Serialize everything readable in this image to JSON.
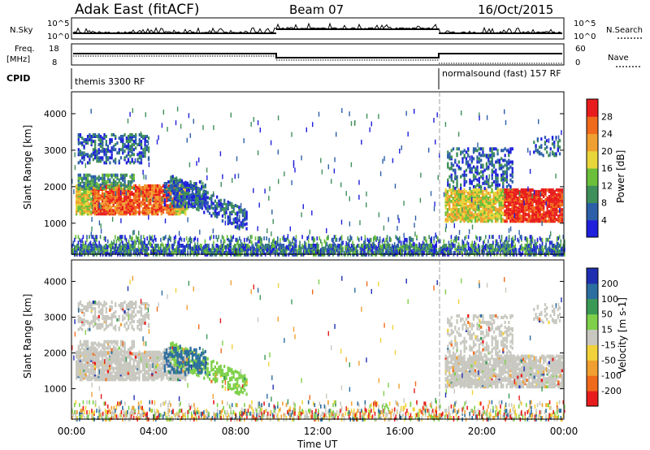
{
  "header": {
    "station": "Adak East (fitACF)",
    "beam": "Beam 07",
    "date": "16/Oct/2015"
  },
  "top_panels": {
    "nsky_label": "N.Sky",
    "nsky_ticks": [
      "10^5",
      "10^0"
    ],
    "nsearch_label": "N.Search",
    "nsearch_ticks": [
      "10^5",
      "10^0"
    ],
    "freq_label": "Freq.",
    "freq_unit": "[MHz]",
    "freq_ticks": [
      "18",
      "8"
    ],
    "nave_label": "Nave",
    "nave_ticks": [
      "60",
      "0"
    ],
    "cpid_label": "CPID",
    "cpid_segments": [
      "themis 3300 RF",
      "normalsound (fast) 157 RF"
    ]
  },
  "chart_data": [
    {
      "type": "heatmap",
      "name": "power",
      "ylabel": "Slant Range [km]",
      "xlabel": "Time UT",
      "x_ticks": [
        "00:00",
        "04:00",
        "08:00",
        "12:00",
        "16:00",
        "20:00",
        "00:00"
      ],
      "y_ticks": [
        1000,
        2000,
        3000,
        4000
      ],
      "ylim": [
        150,
        4600
      ],
      "xlim_hours": [
        0,
        24
      ],
      "colorbar": {
        "label": "Power [dB]",
        "ticks": [
          4,
          8,
          12,
          16,
          20,
          24,
          28
        ],
        "range": [
          0,
          32
        ],
        "colors": [
          "#1f1fdc",
          "#2c5fa8",
          "#3f8f5a",
          "#6bbf3a",
          "#e8d63a",
          "#f0a030",
          "#f06a1c",
          "#e81c1c"
        ]
      }
    },
    {
      "type": "heatmap",
      "name": "velocity",
      "ylabel": "Slant Range [km]",
      "xlabel": "Time UT",
      "x_ticks": [
        "00:00",
        "04:00",
        "08:00",
        "12:00",
        "16:00",
        "20:00",
        "00:00"
      ],
      "y_ticks": [
        1000,
        2000,
        3000,
        4000
      ],
      "ylim": [
        150,
        4600
      ],
      "xlim_hours": [
        0,
        24
      ],
      "colorbar": {
        "label": "Velocity [m s-1]",
        "tick_labels": [
          "200",
          "100",
          "50",
          "15",
          "-15",
          "-50",
          "-100",
          "-200"
        ],
        "colors": [
          "#1f2fb0",
          "#2c6ea0",
          "#3a9a55",
          "#7ed04a",
          "#c8c8c0",
          "#f2d23a",
          "#f0a030",
          "#f06a1c",
          "#e81c1c"
        ]
      }
    }
  ],
  "time_axis": {
    "label": "Time UT"
  }
}
